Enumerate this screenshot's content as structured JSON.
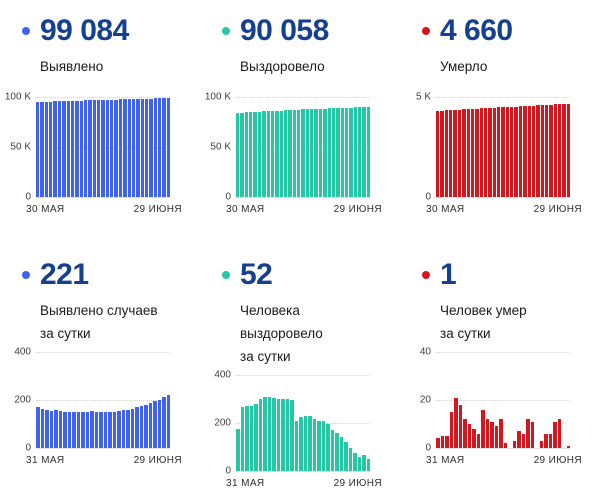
{
  "dashboard": {
    "kpi_number_color": "#153f8f",
    "background": "#ffffff"
  },
  "chart_data": [
    {
      "id": "detected-total",
      "type": "bar",
      "kpi": "99 084",
      "label_line1": "Выявлено",
      "label_line2": "",
      "color": "#3f62ef",
      "x_start": "30 МАЯ",
      "x_end": "29 ИЮНЯ",
      "ylim": [
        0,
        100000
      ],
      "y_ticks": [
        {
          "label": "100 K",
          "value": 100000
        },
        {
          "label": "50 K",
          "value": 50000
        },
        {
          "label": "0",
          "value": 0
        }
      ],
      "values": [
        95000,
        95160,
        95320,
        95470,
        95620,
        95770,
        95920,
        96060,
        96200,
        96340,
        96480,
        96620,
        96750,
        96880,
        97010,
        97140,
        97270,
        97390,
        97510,
        97630,
        97750,
        97870,
        97990,
        98110,
        98230,
        98350,
        98470,
        98590,
        98710,
        98890,
        99084
      ]
    },
    {
      "id": "recovered-total",
      "type": "bar",
      "kpi": "90 058",
      "label_line1": "Выздоровело",
      "label_line2": "",
      "color": "#26c7a4",
      "x_start": "30 МАЯ",
      "x_end": "29 ИЮНЯ",
      "ylim": [
        0,
        100000
      ],
      "y_ticks": [
        {
          "label": "100 K",
          "value": 100000
        },
        {
          "label": "50 K",
          "value": 50000
        },
        {
          "label": "0",
          "value": 0
        }
      ],
      "values": [
        84000,
        84260,
        84520,
        84780,
        85030,
        85280,
        85520,
        85760,
        86000,
        86230,
        86460,
        86680,
        86900,
        87110,
        87320,
        87520,
        87720,
        87910,
        88100,
        88280,
        88460,
        88630,
        88800,
        88960,
        89120,
        89270,
        89420,
        89560,
        89700,
        89880,
        90058
      ]
    },
    {
      "id": "died-total",
      "type": "bar",
      "kpi": "4 660",
      "label_line1": "Умерло",
      "label_line2": "",
      "color": "#d4161e",
      "x_start": "30 МАЯ",
      "x_end": "29 ИЮНЯ",
      "ylim": [
        0,
        5000
      ],
      "y_ticks": [
        {
          "label": "5 K",
          "value": 5000
        },
        {
          "label": "0",
          "value": 0
        }
      ],
      "values": [
        4300,
        4313,
        4326,
        4339,
        4352,
        4365,
        4378,
        4391,
        4404,
        4417,
        4429,
        4441,
        4453,
        4465,
        4477,
        4489,
        4501,
        4513,
        4525,
        4537,
        4549,
        4560,
        4571,
        4582,
        4593,
        4604,
        4615,
        4626,
        4637,
        4648,
        4660
      ]
    },
    {
      "id": "detected-daily",
      "type": "bar",
      "kpi": "221",
      "label_line1": "Выявлено случаев",
      "label_line2": "за сутки",
      "color": "#3f62ef",
      "x_start": "31 МАЯ",
      "x_end": "29 ИЮНЯ",
      "ylim": [
        0,
        400
      ],
      "y_ticks": [
        {
          "label": "400",
          "value": 400
        },
        {
          "label": "200",
          "value": 200
        },
        {
          "label": "0",
          "value": 0
        }
      ],
      "values": [
        172,
        164,
        158,
        155,
        157,
        154,
        152,
        150,
        151,
        149,
        150,
        151,
        153,
        151,
        149,
        151,
        150,
        152,
        154,
        157,
        160,
        164,
        169,
        174,
        180,
        187,
        194,
        202,
        211,
        221
      ]
    },
    {
      "id": "recovered-daily",
      "type": "bar",
      "kpi": "52",
      "label_line1": "Человека выздоровело",
      "label_line2": "за сутки",
      "color": "#26c7a4",
      "x_start": "31 МАЯ",
      "x_end": "29 ИЮНЯ",
      "ylim": [
        0,
        400
      ],
      "y_ticks": [
        {
          "label": "400",
          "value": 400
        },
        {
          "label": "200",
          "value": 200
        },
        {
          "label": "0",
          "value": 0
        }
      ],
      "values": [
        175,
        265,
        270,
        272,
        280,
        300,
        310,
        308,
        305,
        298,
        300,
        302,
        295,
        210,
        225,
        230,
        228,
        215,
        210,
        208,
        195,
        170,
        160,
        140,
        120,
        95,
        75,
        60,
        65,
        52
      ]
    },
    {
      "id": "died-daily",
      "type": "bar",
      "kpi": "1",
      "label_line1": "Человек умер",
      "label_line2": "за сутки",
      "color": "#d4161e",
      "x_start": "31 МАЯ",
      "x_end": "29 ИЮНЯ",
      "ylim": [
        0,
        40
      ],
      "y_ticks": [
        {
          "label": "40",
          "value": 40
        },
        {
          "label": "20",
          "value": 20
        },
        {
          "label": "0",
          "value": 0
        }
      ],
      "values": [
        4,
        5,
        5,
        15,
        21,
        18,
        12,
        10,
        8,
        6,
        16,
        12,
        11,
        9,
        12,
        2,
        0,
        3,
        7,
        6,
        12,
        11,
        0,
        3,
        6,
        6,
        11,
        12,
        0,
        1
      ]
    }
  ]
}
